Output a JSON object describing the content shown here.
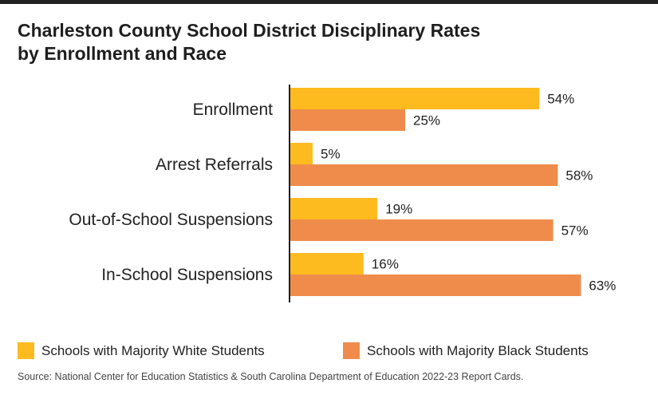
{
  "title_lines": [
    "Charleston County School District Disciplinary Rates",
    "by Enrollment and Race"
  ],
  "chart_data": {
    "type": "bar",
    "orientation": "horizontal",
    "title": "Charleston County School District Disciplinary Rates by Enrollment and Race",
    "categories": [
      "Enrollment",
      "Arrest Referrals",
      "Out-of-School Suspensions",
      "In-School Suspensions"
    ],
    "series": [
      {
        "name": "Schools with Majority White Students",
        "color": "#FDBB1F",
        "values": [
          54,
          5,
          19,
          16
        ],
        "labels": [
          "54%",
          "5%",
          "19%",
          "16%"
        ]
      },
      {
        "name": "Schools with Majority Black Students",
        "color": "#EF8C4C",
        "values": [
          25,
          58,
          57,
          63
        ],
        "labels": [
          "25%",
          "58%",
          "57%",
          "63%"
        ]
      }
    ],
    "value_unit": "%",
    "xlim": [
      0,
      100
    ],
    "grid": false,
    "legend_position": "bottom"
  },
  "source": "Source: National Center for Education Statistics & South Carolina Department of Education 2022-23 Report Cards."
}
